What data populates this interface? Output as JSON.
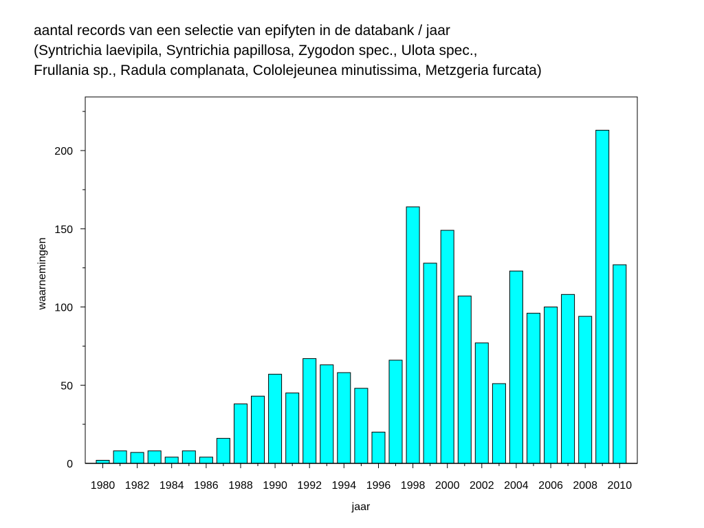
{
  "title_lines": [
    "aantal records van een selectie van epifyten in de databank / jaar",
    "(Syntrichia laevipila, Syntrichia papillosa, Zygodon spec., Ulota spec.,",
    "Frullania sp., Radula complanata, Cololejeunea minutissima, Metzgeria furcata)"
  ],
  "chart_data": {
    "type": "bar",
    "xlabel": "jaar",
    "ylabel": "waarnemingen",
    "x": [
      1980,
      1981,
      1982,
      1983,
      1984,
      1985,
      1986,
      1987,
      1988,
      1989,
      1990,
      1991,
      1992,
      1993,
      1994,
      1995,
      1996,
      1997,
      1998,
      1999,
      2000,
      2001,
      2002,
      2003,
      2004,
      2005,
      2006,
      2007,
      2008,
      2009,
      2010
    ],
    "values": [
      2,
      8,
      7,
      8,
      4,
      8,
      4,
      16,
      38,
      43,
      57,
      45,
      67,
      63,
      58,
      48,
      20,
      66,
      164,
      128,
      149,
      107,
      77,
      51,
      123,
      96,
      100,
      108,
      94,
      213,
      127
    ],
    "x_tick_labels": [
      "1980",
      "1982",
      "1984",
      "1986",
      "1988",
      "1990",
      "1992",
      "1994",
      "1996",
      "1998",
      "2000",
      "2002",
      "2004",
      "2006",
      "2008",
      "2010"
    ],
    "y_tick_labels": [
      "0",
      "50",
      "100",
      "150",
      "200"
    ],
    "y_ticks": [
      0,
      50,
      100,
      150,
      200
    ],
    "ylim": [
      0,
      234
    ],
    "bar_color": "#00FFFF",
    "grid": false
  }
}
